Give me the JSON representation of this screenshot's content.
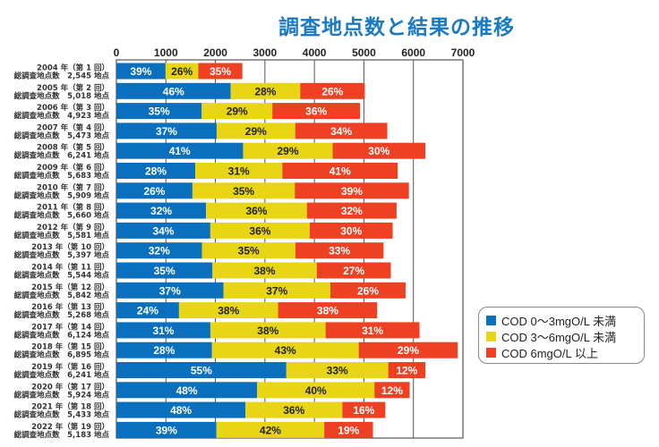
{
  "chart_data": {
    "type": "bar",
    "orientation": "horizontal",
    "stacked": true,
    "title": "調査地点数と結果の推移",
    "xlabel": "",
    "ylabel": "",
    "xlim": [
      0,
      7000
    ],
    "x_ticks": [
      "0",
      "1000",
      "2000",
      "3000",
      "4000",
      "5000",
      "6000",
      "7000"
    ],
    "grid": true,
    "legend_position": "bottom-right",
    "categories": [
      {
        "year": "2004 年（第 1 回）",
        "total_label": "総調査地点数　2,545 地点",
        "total": 2545
      },
      {
        "year": "2005 年（第 2 回）",
        "total_label": "総調査地点数　5,018 地点",
        "total": 5018
      },
      {
        "year": "2006 年（第 3 回）",
        "total_label": "総調査地点数　4,923 地点",
        "total": 4923
      },
      {
        "year": "2007 年（第 4 回）",
        "total_label": "総調査地点数　5,473 地点",
        "total": 5473
      },
      {
        "year": "2008 年（第 5 回）",
        "total_label": "総調査地点数　6,241 地点",
        "total": 6241
      },
      {
        "year": "2009 年（第 6 回）",
        "total_label": "総調査地点数　5,683 地点",
        "total": 5683
      },
      {
        "year": "2010 年（第 7 回）",
        "total_label": "総調査地点数　5,909 地点",
        "total": 5909
      },
      {
        "year": "2011 年（第 8 回）",
        "total_label": "総調査地点数　5,660 地点",
        "total": 5660
      },
      {
        "year": "2012 年（第 9 回）",
        "total_label": "総調査地点数　5,581 地点",
        "total": 5581
      },
      {
        "year": "2013 年（第 10 回）",
        "total_label": "総調査地点数　5,397 地点",
        "total": 5397
      },
      {
        "year": "2014 年（第 11 回）",
        "total_label": "総調査地点数　5,544 地点",
        "total": 5544
      },
      {
        "year": "2015 年（第 12 回）",
        "total_label": "総調査地点数　5,842 地点",
        "total": 5842
      },
      {
        "year": "2016 年（第 13 回）",
        "total_label": "総調査地点数　5,268 地点",
        "total": 5268
      },
      {
        "year": "2017 年（第 14 回）",
        "total_label": "総調査地点数　6,124 地点",
        "total": 6124
      },
      {
        "year": "2018 年（第 15 回）",
        "total_label": "総調査地点数　6,895 地点",
        "total": 6895
      },
      {
        "year": "2019 年（第 16 回）",
        "total_label": "総調査地点数　6,241 地点",
        "total": 6241
      },
      {
        "year": "2020 年（第 17 回）",
        "total_label": "総調査地点数　5,924 地点",
        "total": 5924
      },
      {
        "year": "2021 年（第 18 回）",
        "total_label": "総調査地点数　5,433 地点",
        "total": 5433
      },
      {
        "year": "2022 年（第 19 回）",
        "total_label": "総調査地点数　5,183 地点",
        "total": 5183
      }
    ],
    "series": [
      {
        "name": "COD 0～3mgO/L 未満",
        "color": "#0a6fbd",
        "label_color": "#ffffff",
        "percents": [
          39,
          46,
          35,
          37,
          41,
          28,
          26,
          32,
          34,
          32,
          35,
          37,
          24,
          31,
          28,
          55,
          48,
          48,
          39
        ]
      },
      {
        "name": "COD 3～6mgO/L 未満",
        "color": "#e8d515",
        "label_color": "#222222",
        "percents": [
          26,
          28,
          29,
          29,
          29,
          31,
          35,
          36,
          36,
          35,
          38,
          37,
          38,
          38,
          43,
          33,
          40,
          36,
          42
        ]
      },
      {
        "name": "COD 6mgO/L 以上",
        "color": "#ee4023",
        "label_color": "#ffffff",
        "percents": [
          35,
          26,
          36,
          34,
          30,
          41,
          39,
          32,
          30,
          33,
          27,
          26,
          38,
          31,
          29,
          12,
          12,
          16,
          19
        ]
      }
    ]
  },
  "legend": {
    "items": [
      {
        "label": "COD 0～3mgO/L 未満",
        "color": "#0a6fbd"
      },
      {
        "label": "COD 3～6mgO/L 未満",
        "color": "#e8d515"
      },
      {
        "label": "COD 6mgO/L 以上",
        "color": "#ee4023"
      }
    ]
  }
}
